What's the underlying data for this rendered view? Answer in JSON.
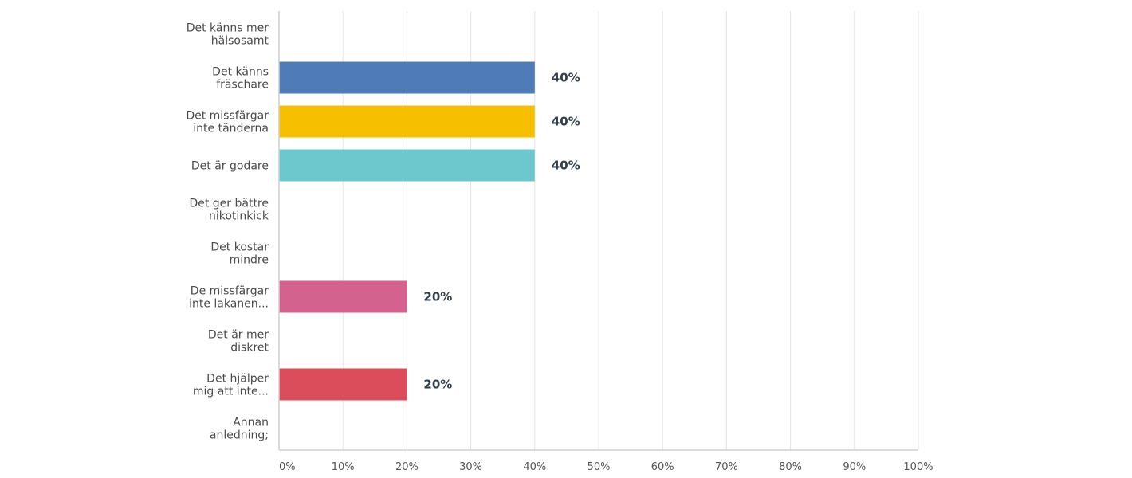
{
  "chart_data": {
    "type": "bar",
    "orientation": "horizontal",
    "categories": [
      [
        "Det känns mer",
        "hälsosamt"
      ],
      [
        "Det känns",
        "fräschare"
      ],
      [
        "Det missfärgar",
        "inte tänderna"
      ],
      [
        "Det är godare"
      ],
      [
        "Det ger bättre",
        "nikotinkick"
      ],
      [
        "Det kostar",
        "mindre"
      ],
      [
        "De missfärgar",
        "inte lakanen..."
      ],
      [
        "Det är mer",
        "diskret"
      ],
      [
        "Det hjälper",
        "mig att inte..."
      ],
      [
        "Annan",
        "anledning;"
      ]
    ],
    "values": [
      0,
      40,
      40,
      40,
      0,
      0,
      20,
      0,
      20,
      0
    ],
    "value_labels": [
      "",
      "40%",
      "40%",
      "40%",
      "",
      "",
      "20%",
      "",
      "20%",
      ""
    ],
    "colors": [
      "#2f8ab5",
      "#4f7bb8",
      "#f6c000",
      "#6cc8cc",
      "#9a9a9a",
      "#8a8a8a",
      "#d4628f",
      "#8a8a8a",
      "#dc4d5c",
      "#8a8a8a"
    ],
    "xlim": [
      0,
      100
    ],
    "xticks": [
      "0%",
      "10%",
      "20%",
      "30%",
      "40%",
      "50%",
      "60%",
      "70%",
      "80%",
      "90%",
      "100%"
    ],
    "grid": true,
    "title": "",
    "xlabel": "",
    "ylabel": ""
  }
}
